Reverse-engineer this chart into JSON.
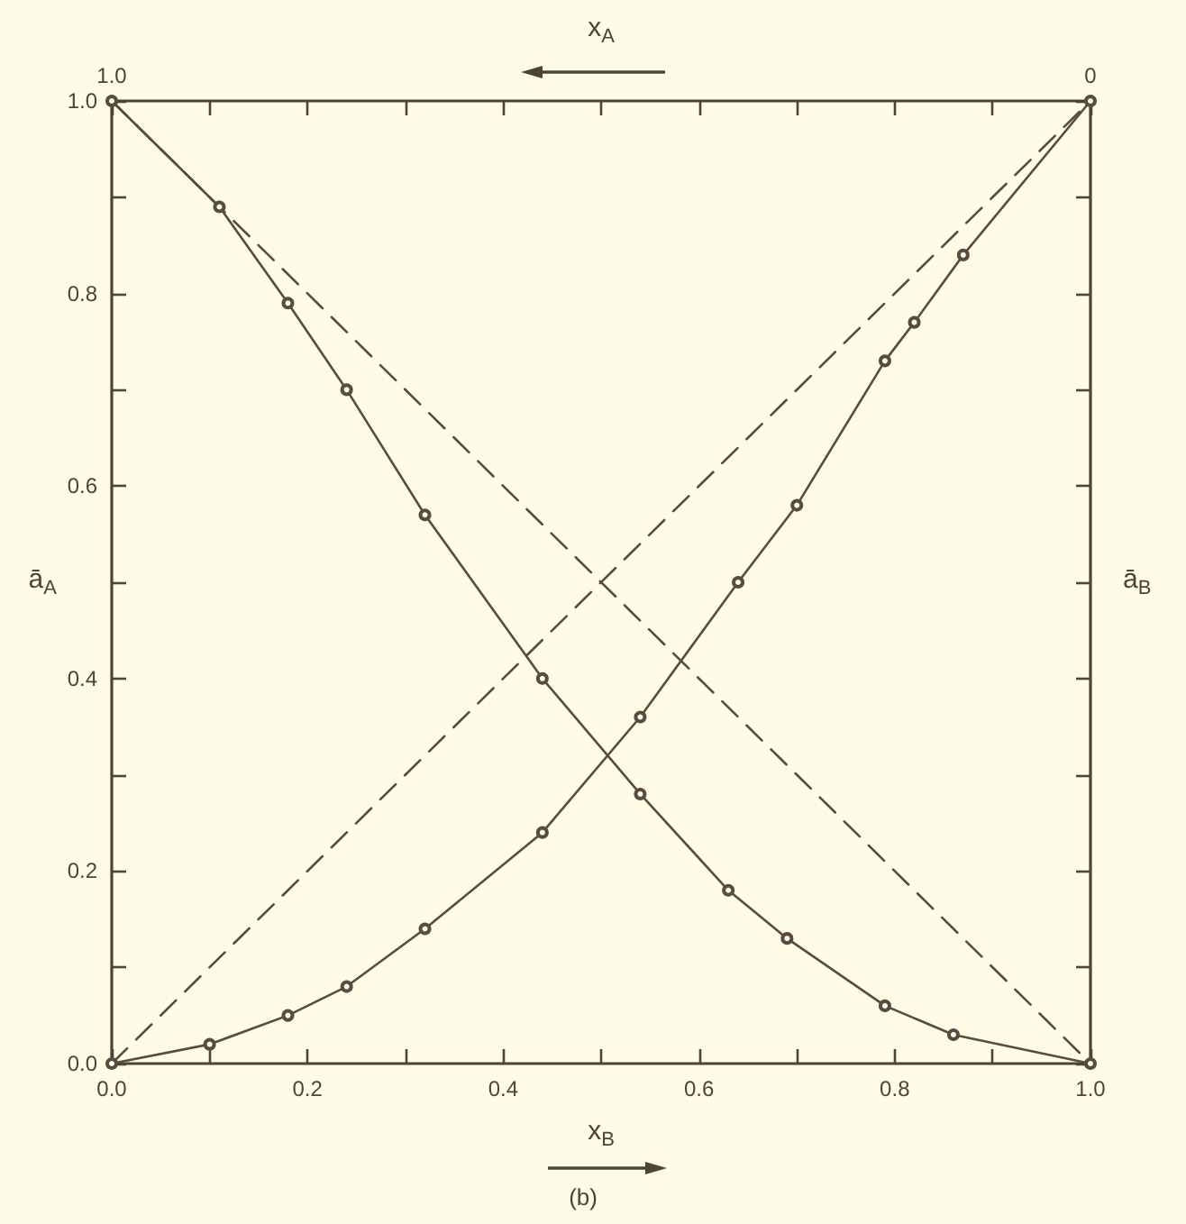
{
  "chart_data": {
    "type": "line",
    "xlabel": "x$_{B}$",
    "x2label": "x$_{A}$",
    "ylabel": "ā$_{A}$",
    "y2label": "ā$_{B}$",
    "annotations": [
      "(b)"
    ],
    "xlim": [
      0,
      1
    ],
    "xticks": [
      {
        "value": 0,
        "label": "0.0"
      },
      {
        "value": 0.1,
        "label": null
      },
      0.2,
      {
        "value": 0.3,
        "label": null
      },
      0.4,
      {
        "value": 0.5,
        "label": null
      },
      0.6,
      {
        "value": 0.7,
        "label": null
      },
      0.8,
      {
        "value": 0.9,
        "label": null
      },
      {
        "value": 1,
        "label": "1.0"
      }
    ],
    "x2lim": [
      1,
      0
    ],
    "x2ticks": [
      {
        "value": 1,
        "label": "1.0"
      },
      {
        "value": 0.9,
        "label": null
      },
      {
        "value": 0.8,
        "label": null
      },
      {
        "value": 0.7,
        "label": null
      },
      {
        "value": 0.6,
        "label": null
      },
      {
        "value": 0.5,
        "label": null
      },
      {
        "value": 0.4,
        "label": null
      },
      {
        "value": 0.3,
        "label": null
      },
      {
        "value": 0.2,
        "label": null
      },
      {
        "value": 0.1,
        "label": null
      },
      0
    ],
    "ylim": [
      0,
      1
    ],
    "yticks": [
      {
        "value": 0,
        "label": "0.0"
      },
      {
        "value": 0.1,
        "label": null
      },
      0.2,
      {
        "value": 0.3,
        "label": null
      },
      0.4,
      {
        "value": 0.5,
        "label": null
      },
      0.6,
      {
        "value": 0.7,
        "label": null
      },
      0.8,
      {
        "value": 0.9,
        "label": null
      },
      {
        "value": 1,
        "label": "1.0"
      }
    ],
    "series": [
      {
        "color": "#5a4b3c",
        "marker": "circle",
        "line_style": "solid",
        "x": [
          0,
          0.11,
          0.18,
          0.24,
          0.32,
          0.44,
          0.54,
          0.63,
          0.69,
          0.79,
          0.86,
          1
        ],
        "values": [
          1,
          0.89,
          0.79,
          0.7,
          0.57,
          0.4,
          0.28,
          0.18,
          0.13,
          0.06,
          0.03,
          0
        ]
      },
      {
        "color": "#5a4b3c",
        "marker": "circle",
        "line_style": "solid",
        "x": [
          0,
          0.1,
          0.18,
          0.24,
          0.32,
          0.44,
          0.54,
          0.64,
          0.7,
          0.79,
          0.82,
          0.87,
          1
        ],
        "values": [
          0,
          0.02,
          0.05,
          0.08,
          0.14,
          0.24,
          0.36,
          0.5,
          0.58,
          0.73,
          0.77,
          0.84,
          1
        ]
      },
      {
        "color": "#5a4b3c",
        "marker": "none",
        "line_style": "dashed",
        "x": [
          0,
          1
        ],
        "values": [
          1,
          0
        ]
      },
      {
        "color": "#5a4b3c",
        "marker": "none",
        "line_style": "dashed",
        "x": [
          0,
          1
        ],
        "values": [
          0,
          1
        ]
      }
    ]
  }
}
